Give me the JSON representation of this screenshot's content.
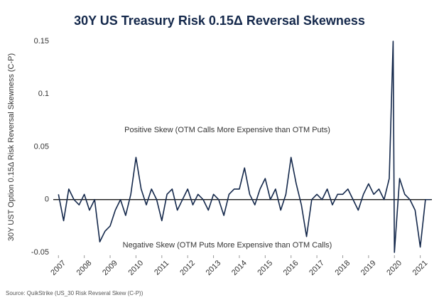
{
  "chart_data": {
    "type": "line",
    "title": "30Y US Treasury Risk 0.15Δ Reversal Skewness",
    "y_label": "30Y UST Option 0.15Δ Risk Reversal Skewness  (C-P)",
    "annotations": [
      "Positive Skew (OTM Calls More Expensive than OTM Puts)",
      "Negative Skew (OTM Puts More Expensive than OTM Calls)"
    ],
    "source": "Source: QuikStrike (US_30 Risk Revseral Skew (C-P))",
    "x": [
      2007.0,
      2007.2,
      2007.4,
      2007.6,
      2007.8,
      2008.0,
      2008.2,
      2008.4,
      2008.6,
      2008.8,
      2009.0,
      2009.2,
      2009.4,
      2009.6,
      2009.8,
      2010.0,
      2010.2,
      2010.4,
      2010.6,
      2010.8,
      2011.0,
      2011.2,
      2011.4,
      2011.6,
      2011.8,
      2012.0,
      2012.2,
      2012.4,
      2012.6,
      2012.8,
      2013.0,
      2013.2,
      2013.4,
      2013.6,
      2013.8,
      2014.0,
      2014.2,
      2014.4,
      2014.6,
      2014.8,
      2015.0,
      2015.2,
      2015.4,
      2015.6,
      2015.8,
      2016.0,
      2016.2,
      2016.4,
      2016.6,
      2016.8,
      2017.0,
      2017.2,
      2017.4,
      2017.6,
      2017.8,
      2018.0,
      2018.2,
      2018.4,
      2018.6,
      2018.8,
      2019.0,
      2019.2,
      2019.4,
      2019.6,
      2019.8,
      2019.95,
      2020.0,
      2020.2,
      2020.4,
      2020.6,
      2020.8,
      2021.0,
      2021.2,
      2021.4
    ],
    "series": [
      {
        "name": "Risk Reversal Skew",
        "color": "#14284b",
        "values": [
          0.005,
          -0.02,
          0.01,
          0.0,
          -0.005,
          0.005,
          -0.01,
          0.0,
          -0.04,
          -0.03,
          -0.025,
          -0.01,
          0.0,
          -0.015,
          0.005,
          0.04,
          0.01,
          -0.005,
          0.01,
          0.0,
          -0.02,
          0.005,
          0.01,
          -0.01,
          0.0,
          0.01,
          -0.005,
          0.005,
          0.0,
          -0.01,
          0.005,
          0.0,
          -0.015,
          0.005,
          0.01,
          0.01,
          0.03,
          0.005,
          -0.005,
          0.01,
          0.02,
          0.0,
          0.01,
          -0.01,
          0.005,
          0.04,
          0.015,
          -0.005,
          -0.035,
          0.0,
          0.005,
          0.0,
          0.01,
          -0.005,
          0.005,
          0.005,
          0.01,
          0.0,
          -0.01,
          0.005,
          0.015,
          0.005,
          0.01,
          0.0,
          0.02,
          0.15,
          -0.05,
          0.02,
          0.005,
          0.0,
          -0.01,
          -0.045,
          0.0,
          0.0
        ]
      }
    ],
    "xlim": [
      2006.8,
      2021.45
    ],
    "xticks": [
      2007,
      2008,
      2009,
      2010,
      2011,
      2012,
      2013,
      2014,
      2015,
      2016,
      2017,
      2018,
      2019,
      2020,
      2021
    ],
    "ylim": [
      -0.05,
      0.15
    ],
    "yticks": [
      -0.05,
      0,
      0.05,
      0.1,
      0.15
    ],
    "grid": false
  }
}
